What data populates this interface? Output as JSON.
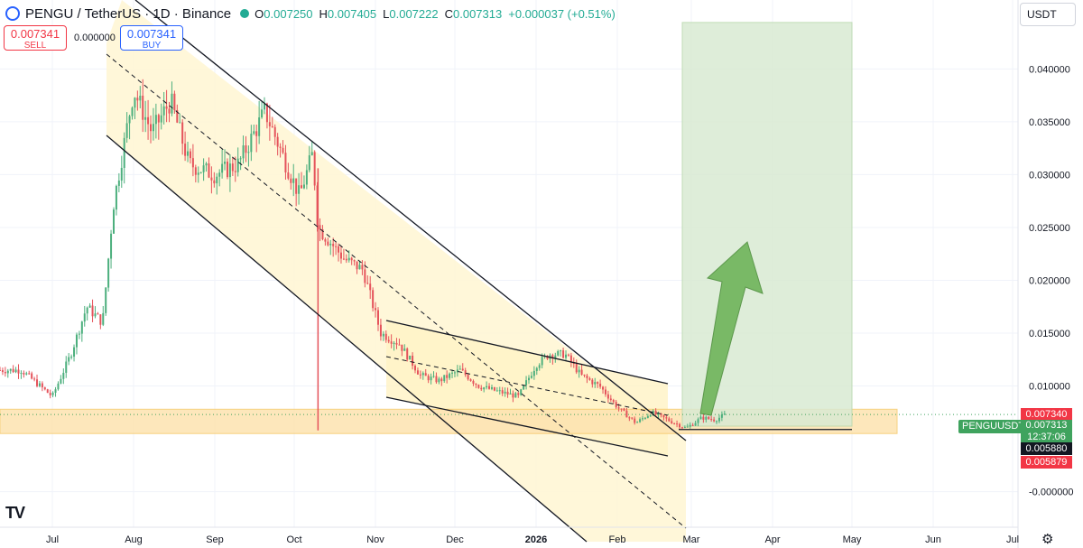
{
  "header": {
    "title": "PENGU / TetherUS · 1D · Binance",
    "ohlc": {
      "o_label": "O",
      "o": "0.007250",
      "h_label": "H",
      "h": "0.007405",
      "l_label": "L",
      "l": "0.007222",
      "c_label": "C",
      "c": "0.007313",
      "change": "+0.000037 (+0.51%)"
    }
  },
  "trade": {
    "sell_price": "0.007341",
    "sell_label": "SELL",
    "buy_price": "0.007341",
    "buy_label": "BUY",
    "spread": "0.000000"
  },
  "currency": "USDT",
  "symbol_tag": "PENGUUSDT",
  "price_tags": {
    "ask": "0.007340",
    "last": "0.007313",
    "countdown": "12:37:06",
    "support": "0.005880",
    "bid": "0.005879"
  },
  "colors": {
    "up": "#4caf7d",
    "down": "#e5535b",
    "channel_fill": "#fff6d5",
    "zone_fill": "#fde3b0",
    "target_fill": "#d9ead3",
    "arrow": "#6fb45a"
  },
  "icons": {
    "logo": "pengu-logo-icon",
    "status": "market-open-dot-icon",
    "brand": "tradingview-logo-icon",
    "settings": "gear-icon"
  },
  "chart_data": {
    "type": "candlestick",
    "title": "PENGU / TetherUS · 1D · Binance",
    "ylim": [
      -0.002,
      0.0455
    ],
    "x_tick_labels": [
      "Jul",
      "Aug",
      "Sep",
      "Oct",
      "Nov",
      "Dec",
      "2026",
      "Feb",
      "Mar",
      "Apr",
      "May",
      "Jun",
      "Jul"
    ],
    "y_tick_labels": [
      "0.040000",
      "0.035000",
      "0.030000",
      "0.025000",
      "0.020000",
      "0.015000",
      "0.010000",
      "-0.000000"
    ],
    "y_ticks": [
      0.04,
      0.035,
      0.03,
      0.025,
      0.02,
      0.015,
      0.01,
      0.0
    ],
    "grid": true,
    "price_series": {
      "name": "PENGUUSDT",
      "dates": [
        "Jun 20",
        "Jul 1",
        "Jul 8",
        "Jul 14",
        "Jul 20",
        "Jul 24",
        "Aug 1",
        "Aug 8",
        "Aug 15",
        "Aug 22",
        "Sep 1",
        "Sep 10",
        "Sep 20",
        "Sep 28",
        "Oct 3",
        "Oct 8",
        "Oct 10",
        "Oct 15",
        "Oct 20",
        "Oct 27",
        "Nov 3",
        "Nov 10",
        "Nov 18",
        "Nov 25",
        "Dec 3",
        "Dec 10",
        "Dec 17",
        "Dec 25",
        "Jan 1",
        "Jan 6",
        "Jan 12",
        "Jan 18",
        "Jan 25",
        "Feb 1",
        "Feb 8",
        "Feb 14",
        "Feb 20",
        "Feb 27",
        "Mar 5",
        "Mar 10",
        "Mar 14"
      ],
      "close": [
        0.0115,
        0.009,
        0.013,
        0.0175,
        0.016,
        0.027,
        0.038,
        0.034,
        0.037,
        0.031,
        0.03,
        0.031,
        0.036,
        0.031,
        0.028,
        0.032,
        0.025,
        0.0235,
        0.022,
        0.021,
        0.015,
        0.014,
        0.011,
        0.0105,
        0.0115,
        0.01,
        0.0095,
        0.009,
        0.012,
        0.013,
        0.013,
        0.011,
        0.01,
        0.008,
        0.0065,
        0.0075,
        0.0068,
        0.006,
        0.007,
        0.0068,
        0.0073
      ]
    },
    "key_levels": {
      "support": 0.00588,
      "support_zone": [
        0.0055,
        0.0078
      ],
      "target_zone": [
        0.0062,
        0.0444
      ]
    }
  }
}
